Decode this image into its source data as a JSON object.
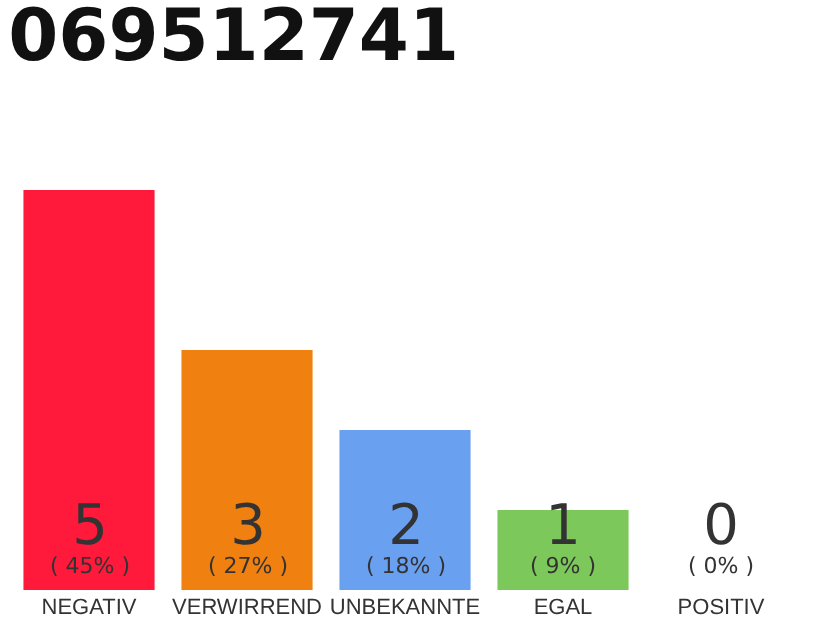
{
  "chart_data": {
    "type": "bar",
    "title": "069512741",
    "categories": [
      "NEGATIV",
      "VERWIRREND",
      "UNBEKANNTE",
      "EGAL",
      "POSITIV"
    ],
    "values": [
      5,
      3,
      2,
      1,
      0
    ],
    "colors": [
      "#ff1a3c",
      "#f08010",
      "#6aa0f0",
      "#7dc85a",
      "#eeeeee"
    ],
    "value_labels": [
      "5\n( 45% )",
      "3\n( 27% )",
      "2\n( 18% )",
      "1\n( 9% )",
      "0\n( 0% )"
    ],
    "grid": false
  }
}
